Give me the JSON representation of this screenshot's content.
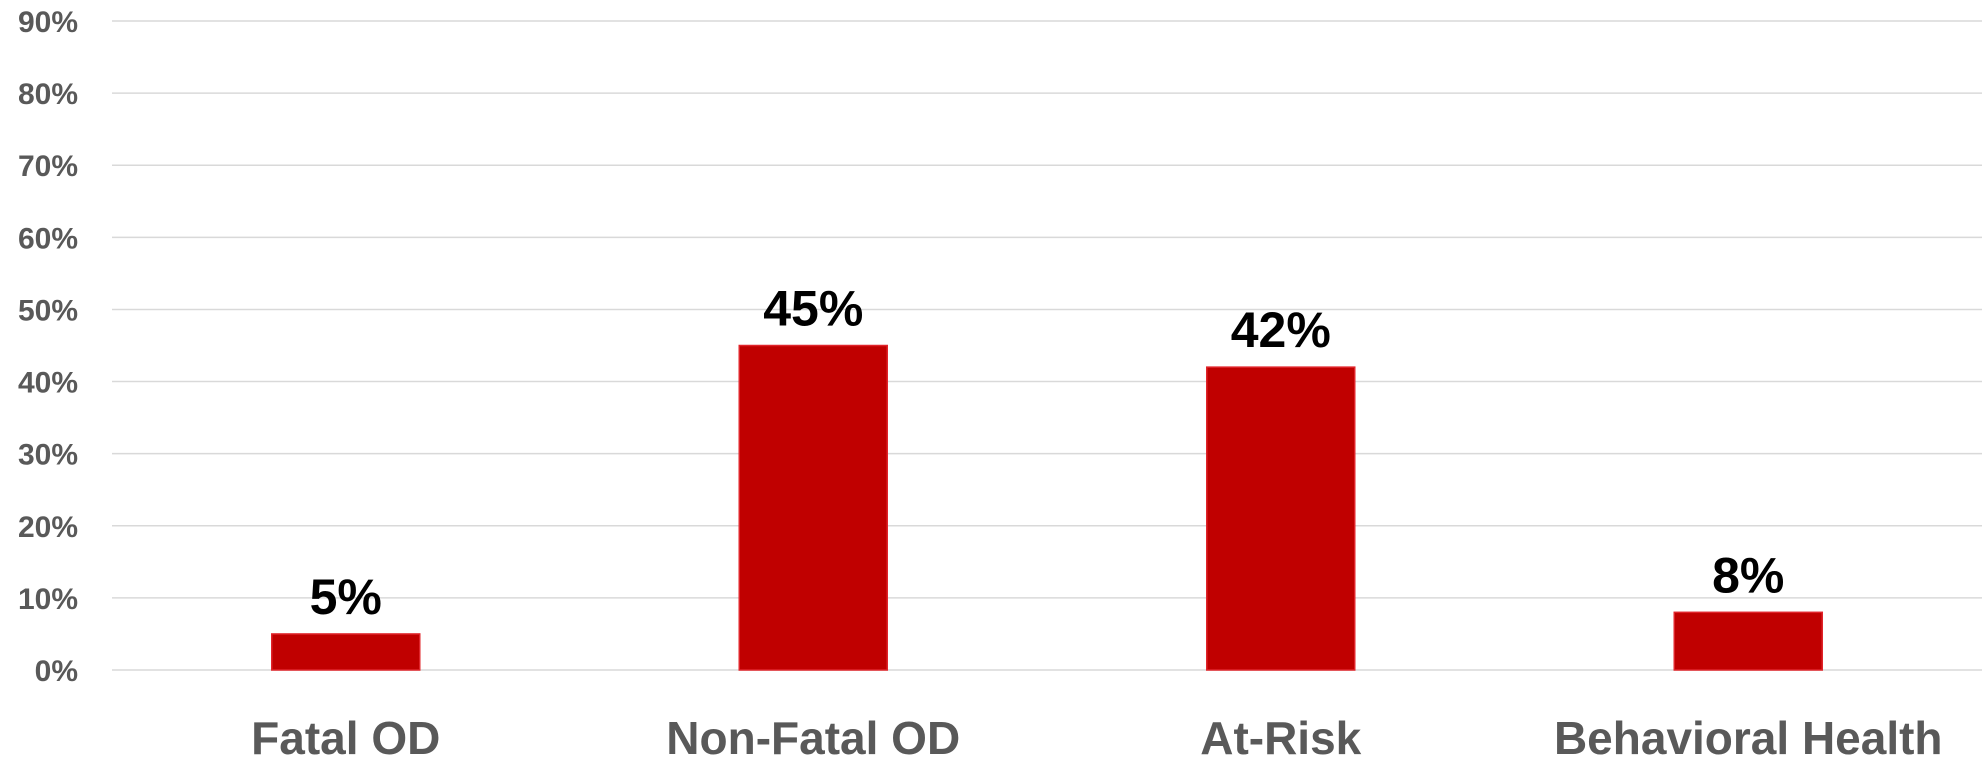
{
  "chart_data": {
    "type": "bar",
    "categories": [
      "Fatal OD",
      "Non-Fatal OD",
      "At-Risk",
      "Behavioral Health"
    ],
    "values": [
      5,
      45,
      42,
      8
    ],
    "data_labels": [
      "5%",
      "45%",
      "42%",
      "8%"
    ],
    "title": "",
    "xlabel": "",
    "ylabel": "",
    "ylim": [
      0,
      90
    ],
    "y_ticks": [
      0,
      10,
      20,
      30,
      40,
      50,
      60,
      70,
      80,
      90
    ],
    "y_tick_labels": [
      "0%",
      "10%",
      "20%",
      "30%",
      "40%",
      "50%",
      "60%",
      "70%",
      "80%",
      "90%"
    ],
    "grid": true,
    "legend": "none",
    "colors": {
      "bar": "#c00000",
      "grid": "#d9d9d9",
      "tick_text": "#595959",
      "data_label": "#000000"
    }
  }
}
